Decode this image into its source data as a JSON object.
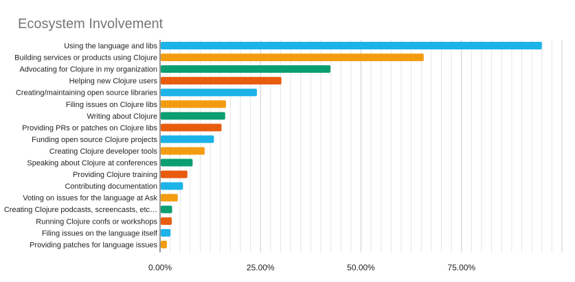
{
  "chart_data": {
    "type": "bar",
    "orientation": "horizontal",
    "title": "Ecosystem Involvement",
    "xlabel": "",
    "ylabel": "",
    "xlim": [
      0,
      1
    ],
    "x_ticks": [
      0,
      0.25,
      0.5,
      0.75
    ],
    "x_tick_labels": [
      "0.00%",
      "25.00%",
      "50.00%",
      "75.00%"
    ],
    "grid": "vertical",
    "legend": "none",
    "categories": [
      "Using the language and libs",
      "Building services or products using Clojure",
      "Advocating for Clojure in my organization",
      "Helping new Clojure users",
      "Creating/maintaining open source libraries",
      "Filing issues on Clojure libs",
      "Writing about Clojure",
      "Providing PRs or patches on Clojure libs",
      "Funding open source Clojure projects",
      "Creating Clojure developer tools",
      "Speaking about Clojure at conferences",
      "Providing Clojure training",
      "Contributing documentation",
      "Voting on issues for the language at Ask",
      "Creating Clojure podcasts, screencasts, etc…",
      "Running Clojure confs or workshops",
      "Filing issues on the language itself",
      "Providing patches for language issues"
    ],
    "values": [
      0.95,
      0.656,
      0.424,
      0.302,
      0.241,
      0.164,
      0.162,
      0.153,
      0.134,
      0.111,
      0.081,
      0.068,
      0.057,
      0.044,
      0.03,
      0.029,
      0.026,
      0.017
    ],
    "bar_colors": [
      "#1cb3e8",
      "#f39c11",
      "#0b9e71",
      "#e85c0d",
      "#1cb3e8",
      "#f39c11",
      "#0b9e71",
      "#e85c0d",
      "#1cb3e8",
      "#f39c11",
      "#0b9e71",
      "#e85c0d",
      "#1cb3e8",
      "#f39c11",
      "#0b9e71",
      "#e85c0d",
      "#1cb3e8",
      "#f39c11"
    ]
  }
}
